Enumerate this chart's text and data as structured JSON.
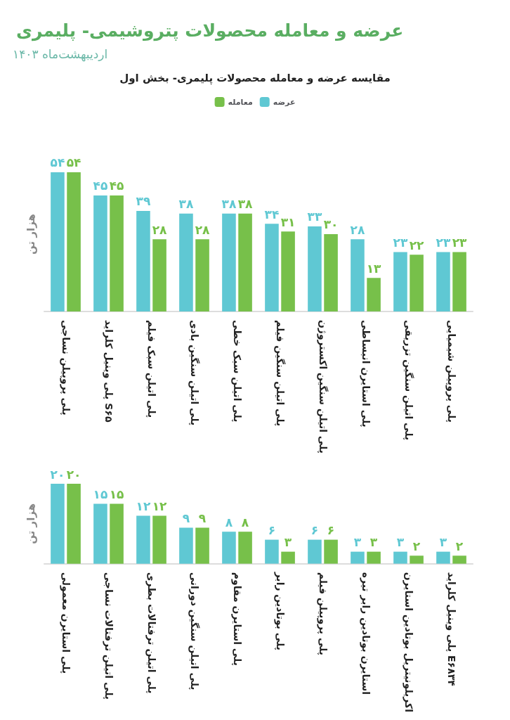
{
  "chart_data": [
    {
      "type": "bar",
      "title": "عرضه و معامله محصولات پتروشیمی- پلیمری",
      "subtitle": "اردیبهشت‌ماه ۱۴۰۳",
      "annotations": [
        "مقایسه عرضه و معامله محصولات پلیمری- بخش اول"
      ],
      "ylabel": "هزار تن",
      "legend": "top",
      "categories": [
        "پلی پروپیلن نساجی",
        "پلی وینیل کلراید S۶۵",
        "پلی اتیلن سبک فیلم",
        "پلی اتیلن سنگین بادی",
        "پلی اتیلن سبک خطی",
        "پلی اتیلن سنگین فیلم",
        "پلی اتیلن سنگین اکستروژن",
        "پلی استایرن انبساطی",
        "پلی اتیلن سنگین تزریقی",
        "پلی پروپیلن شیمیایی"
      ],
      "series": [
        {
          "name": "عرضه",
          "color": "#5fc8d3",
          "values": [
            54,
            45,
            39,
            38,
            38,
            34,
            33,
            28,
            23,
            23
          ],
          "value_labels": [
            "۵۴",
            "۴۵",
            "۳۹",
            "۳۸",
            "۳۸",
            "۳۴",
            "۳۳",
            "۲۸",
            "۲۳",
            "۲۳"
          ]
        },
        {
          "name": "معامله",
          "color": "#77c04a",
          "values": [
            54,
            45,
            28,
            28,
            38,
            31,
            30,
            13,
            22,
            23
          ],
          "value_labels": [
            "۵۴",
            "۴۵",
            "۲۸",
            "۲۸",
            "۳۸",
            "۳۱",
            "۳۰",
            "۱۳",
            "۲۲",
            "۲۳"
          ]
        }
      ]
    },
    {
      "type": "bar",
      "ylabel": "هزار تن",
      "categories": [
        "پلی استایرن معمولی",
        "پلی اتیلن ترفتالات نساجی",
        "پلی اتیلن ترفتالات بطری",
        "پلی اتیلن سنگین دورانی",
        "پلی استایرن مقاوم",
        "پلی بوتادین رابر",
        "پلی پروپیلن فیلم",
        "استایرن بوتادین رابر تیره",
        "اکریلونیتریل بوتادین استایرن",
        "پلی وینیل کلراید E۶۸۳۴"
      ],
      "series": [
        {
          "color": "#5fc8d3",
          "values": [
            20,
            15,
            12,
            9,
            8,
            6,
            6,
            3,
            3,
            3
          ],
          "value_labels": [
            "۲۰",
            "۱۵",
            "۱۲",
            "۹",
            "۸",
            "۶",
            "۶",
            "۳",
            "۳",
            "۳"
          ]
        },
        {
          "color": "#77c04a",
          "values": [
            20,
            15,
            12,
            9,
            8,
            3,
            6,
            3,
            2,
            2
          ],
          "value_labels": [
            "۲۰",
            "۱۵",
            "۱۲",
            "۹",
            "۸",
            "۳",
            "۶",
            "۳",
            "۲",
            "۲"
          ]
        }
      ]
    }
  ]
}
